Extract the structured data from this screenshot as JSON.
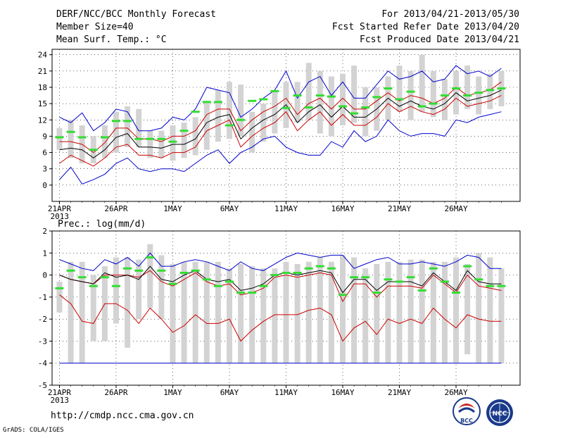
{
  "header": {
    "title": "DERF/NCC/BCC Monthly Forecast",
    "member_size": "Member Size=40",
    "period": "For 2013/04/21-2013/05/30",
    "started": "Fcst Started Refer Date 2013/04/20",
    "produced": "Fcst Produced Date 2013/04/21"
  },
  "footer": {
    "url": "http://cmdp.ncc.cma.gov.cn",
    "credit": "GrADS: COLA/IGES",
    "logo1_text": "BCC",
    "logo2_text": "NCC"
  },
  "colors": {
    "box": "#d3d3d3",
    "mean": "#000000",
    "inner": "#cc0000",
    "outer": "#0000cc",
    "median": "#33dd33",
    "zero": "#0000cc"
  },
  "chart_data": [
    {
      "type": "box-line",
      "id": "temperature",
      "title": "Mean Surf. Temp.: °C",
      "ylim": [
        -3,
        25
      ],
      "yticks": [
        0,
        3,
        6,
        9,
        12,
        15,
        18,
        21,
        24
      ],
      "xticks": [
        "21APR",
        "26APR",
        "1MAY",
        "6MAY",
        "11MAY",
        "16MAY",
        "21MAY",
        "26MAY"
      ],
      "xtick_days": [
        1,
        6,
        11,
        16,
        21,
        26,
        31,
        36
      ],
      "year_label": "2013",
      "days": 40,
      "box_high": [
        10.5,
        12.0,
        11.0,
        9.0,
        11.0,
        13.5,
        14.5,
        14.0,
        10.0,
        10.0,
        11.0,
        11.5,
        12.5,
        15.5,
        17.5,
        19.0,
        18.5,
        13.5,
        15.0,
        17.5,
        19.0,
        19.0,
        22.5,
        21.0,
        20.0,
        20.5,
        22.0,
        18.0,
        18.0,
        20.0,
        22.0,
        21.0,
        24.0,
        21.0,
        19.5,
        21.0,
        22.0,
        20.0,
        20.5,
        21.0
      ],
      "box_low": [
        6.5,
        5.0,
        4.0,
        4.0,
        5.0,
        6.0,
        7.0,
        7.0,
        5.0,
        5.0,
        4.5,
        5.0,
        5.5,
        6.5,
        8.0,
        8.5,
        9.0,
        6.0,
        8.0,
        9.5,
        10.5,
        11.5,
        12.0,
        9.5,
        9.0,
        11.0,
        11.5,
        9.0,
        10.0,
        12.0,
        13.5,
        12.0,
        13.5,
        12.5,
        12.0,
        13.0,
        14.0,
        13.0,
        14.0,
        14.5
      ],
      "median": [
        8.8,
        9.8,
        8.8,
        6.5,
        8.8,
        11.8,
        11.8,
        8.5,
        8.5,
        8.5,
        8.0,
        10.0,
        13.5,
        15.3,
        15.3,
        11.0,
        12.0,
        15.5,
        15.8,
        17.3,
        14.2,
        16.5,
        14.3,
        16.5,
        16.3,
        14.5,
        13.2,
        14.3,
        16.2,
        17.8,
        15.8,
        17.2,
        14.5,
        15.0,
        16.5,
        17.8,
        16.5,
        17.0,
        17.5,
        17.8
      ],
      "mean": [
        6.5,
        6.8,
        6.5,
        5.0,
        6.5,
        8.8,
        9.5,
        7.0,
        7.0,
        6.8,
        7.5,
        7.5,
        8.5,
        11.5,
        12.5,
        13.0,
        8.5,
        10.5,
        12.0,
        13.0,
        14.8,
        11.5,
        13.5,
        14.8,
        12.5,
        14.5,
        12.5,
        12.5,
        14.0,
        16.0,
        14.5,
        15.5,
        14.5,
        14.0,
        15.0,
        17.0,
        15.5,
        16.0,
        16.5,
        17.5
      ],
      "inner_high": [
        8.0,
        8.0,
        7.5,
        6.0,
        7.8,
        10.5,
        10.5,
        8.5,
        8.5,
        8.0,
        9.0,
        9.0,
        10.0,
        13.0,
        14.0,
        14.0,
        10.0,
        12.0,
        13.5,
        14.5,
        16.0,
        13.0,
        15.0,
        16.0,
        14.0,
        16.0,
        14.0,
        14.0,
        15.5,
        17.0,
        15.5,
        16.5,
        16.0,
        15.0,
        16.0,
        18.0,
        16.5,
        17.0,
        17.5,
        19.0
      ],
      "inner_low": [
        4.0,
        5.5,
        4.5,
        3.5,
        5.0,
        7.0,
        7.5,
        5.5,
        5.5,
        5.0,
        6.0,
        6.0,
        7.0,
        10.0,
        11.0,
        12.0,
        7.0,
        9.0,
        10.5,
        11.5,
        13.5,
        10.0,
        12.0,
        13.5,
        11.0,
        13.0,
        11.0,
        11.0,
        12.5,
        15.0,
        13.5,
        14.5,
        13.5,
        13.0,
        14.0,
        16.0,
        14.5,
        15.0,
        15.5,
        16.5
      ],
      "outer_high": [
        12.5,
        11.5,
        13.3,
        10.0,
        11.5,
        14.0,
        13.5,
        10.0,
        10.0,
        10.5,
        12.5,
        12.0,
        14.0,
        18.0,
        17.5,
        17.0,
        12.5,
        14.0,
        16.0,
        17.5,
        21.0,
        16.0,
        19.0,
        20.0,
        16.5,
        19.0,
        16.0,
        16.0,
        18.5,
        21.0,
        19.5,
        20.0,
        21.0,
        19.0,
        19.5,
        22.0,
        20.5,
        21.0,
        20.0,
        21.5
      ],
      "outer_low": [
        1.0,
        3.3,
        0.2,
        1.0,
        2.0,
        4.0,
        5.0,
        3.0,
        2.5,
        3.0,
        3.0,
        2.5,
        4.0,
        5.5,
        6.5,
        4.0,
        6.0,
        7.0,
        8.5,
        9.0,
        7.0,
        6.0,
        5.5,
        5.5,
        8.0,
        7.0,
        10.0,
        8.0,
        9.0,
        12.0,
        10.0,
        9.0,
        9.5,
        9.5,
        9.0,
        12.0,
        11.5,
        12.5,
        13.0,
        13.5
      ]
    },
    {
      "type": "box-line",
      "id": "precipitation",
      "title": "Prec.: log(mm/d)",
      "ylim": [
        -5,
        2
      ],
      "yticks": [
        -5,
        -4,
        -3,
        -2,
        -1,
        0,
        1,
        2
      ],
      "xticks": [
        "21APR",
        "26APR",
        "1MAY",
        "6MAY",
        "11MAY",
        "16MAY",
        "21MAY",
        "26MAY"
      ],
      "xtick_days": [
        1,
        6,
        11,
        16,
        21,
        26,
        31,
        36
      ],
      "year_label": "2013",
      "days": 40,
      "zero_line": -4,
      "box_high": [
        -0.3,
        0.6,
        0.6,
        0.0,
        0.4,
        0.8,
        0.8,
        0.7,
        1.4,
        0.9,
        0.5,
        0.6,
        0.6,
        0.6,
        0.6,
        0.3,
        0.5,
        0.4,
        0.3,
        0.3,
        0.6,
        0.5,
        0.6,
        0.8,
        0.6,
        0.9,
        0.8,
        0.3,
        0.5,
        0.6,
        0.6,
        0.7,
        0.7,
        0.6,
        0.6,
        0.8,
        0.5,
        1.0,
        0.8,
        0.3
      ],
      "box_low": [
        -1.7,
        -4.0,
        -4.0,
        -3.0,
        -3.0,
        -2.2,
        -3.3,
        -2.0,
        -1.5,
        -2.0,
        -4.0,
        -4.0,
        -4.0,
        -4.0,
        -4.0,
        -4.0,
        -4.0,
        -4.0,
        -4.0,
        -4.0,
        -4.0,
        -4.0,
        -4.0,
        -4.0,
        -4.0,
        -4.0,
        -4.0,
        -4.0,
        -4.0,
        -4.0,
        -4.0,
        -4.0,
        -4.0,
        -4.0,
        -4.0,
        -4.0,
        -3.6,
        -4.0,
        -4.0,
        -4.0
      ],
      "median": [
        -0.6,
        0.2,
        -0.1,
        -0.5,
        -0.1,
        -0.5,
        0.3,
        0.2,
        0.8,
        0.2,
        -0.4,
        0.1,
        0.2,
        -0.2,
        -0.5,
        -0.3,
        -0.8,
        -0.8,
        -0.5,
        0.0,
        0.1,
        0.1,
        0.3,
        0.4,
        0.3,
        -0.9,
        -0.1,
        -0.1,
        -0.8,
        -0.2,
        -0.3,
        -0.1,
        -0.7,
        0.3,
        -0.3,
        -0.8,
        0.4,
        -0.2,
        -0.5,
        -0.5
      ],
      "mean": [
        0.0,
        -0.2,
        -0.3,
        -0.4,
        0.1,
        -0.1,
        0.0,
        -0.2,
        0.4,
        -0.2,
        -0.3,
        0.0,
        0.2,
        -0.2,
        -0.3,
        -0.2,
        -0.7,
        -0.6,
        -0.4,
        0.0,
        0.1,
        0.0,
        0.1,
        0.2,
        0.1,
        -0.8,
        -0.2,
        -0.2,
        -0.7,
        -0.3,
        -0.3,
        -0.3,
        -0.5,
        0.1,
        -0.3,
        -0.7,
        0.2,
        -0.3,
        -0.4,
        -0.4
      ],
      "inner_high": [
        0.0,
        -0.2,
        -0.3,
        -0.4,
        0.0,
        0.0,
        0.0,
        -0.1,
        0.2,
        -0.3,
        -0.5,
        -0.2,
        0.1,
        -0.3,
        -0.5,
        -0.4,
        -0.9,
        -0.8,
        -0.6,
        -0.1,
        0.0,
        -0.1,
        0.0,
        0.1,
        0.0,
        -1.2,
        -0.4,
        -0.4,
        -1.0,
        -0.5,
        -0.5,
        -0.5,
        -0.6,
        0.0,
        -0.4,
        -0.8,
        0.0,
        -0.5,
        -0.6,
        -0.7
      ],
      "inner_low": [
        -0.9,
        -1.3,
        -2.1,
        -2.2,
        -1.3,
        -1.3,
        -1.6,
        -2.2,
        -1.5,
        -2.0,
        -2.6,
        -2.3,
        -1.8,
        -2.2,
        -2.2,
        -2.0,
        -3.0,
        -2.5,
        -2.1,
        -1.8,
        -1.8,
        -1.8,
        -1.6,
        -1.5,
        -1.8,
        -3.0,
        -2.4,
        -2.1,
        -2.7,
        -2.0,
        -2.2,
        -2.0,
        -2.2,
        -1.5,
        -2.0,
        -2.4,
        -1.8,
        -2.0,
        -2.1,
        -2.1
      ],
      "outer_high": [
        0.7,
        0.5,
        0.3,
        0.2,
        0.7,
        0.5,
        0.8,
        0.4,
        1.0,
        0.4,
        0.4,
        0.6,
        0.7,
        0.6,
        0.4,
        0.2,
        0.6,
        0.3,
        0.2,
        0.5,
        0.8,
        1.0,
        0.9,
        0.8,
        0.9,
        0.9,
        0.3,
        0.5,
        0.7,
        0.8,
        0.5,
        0.5,
        0.6,
        0.5,
        0.4,
        0.6,
        0.9,
        0.8,
        0.3,
        0.3
      ],
      "outer_low": [
        -4.0,
        -4.0,
        -4.0,
        -4.0,
        -4.0,
        -4.0,
        -4.0,
        -4.0,
        -4.0,
        -4.0,
        -4.0,
        -4.0,
        -4.0,
        -4.0,
        -4.0,
        -4.0,
        -4.0,
        -4.0,
        -4.0,
        -4.0,
        -4.0,
        -4.0,
        -4.0,
        -4.0,
        -4.0,
        -4.0,
        -4.0,
        -4.0,
        -4.0,
        -4.0,
        -4.0,
        -4.0,
        -4.0,
        -4.0,
        -4.0,
        -4.0,
        -4.0,
        -4.0,
        -4.0,
        -4.0
      ]
    }
  ]
}
